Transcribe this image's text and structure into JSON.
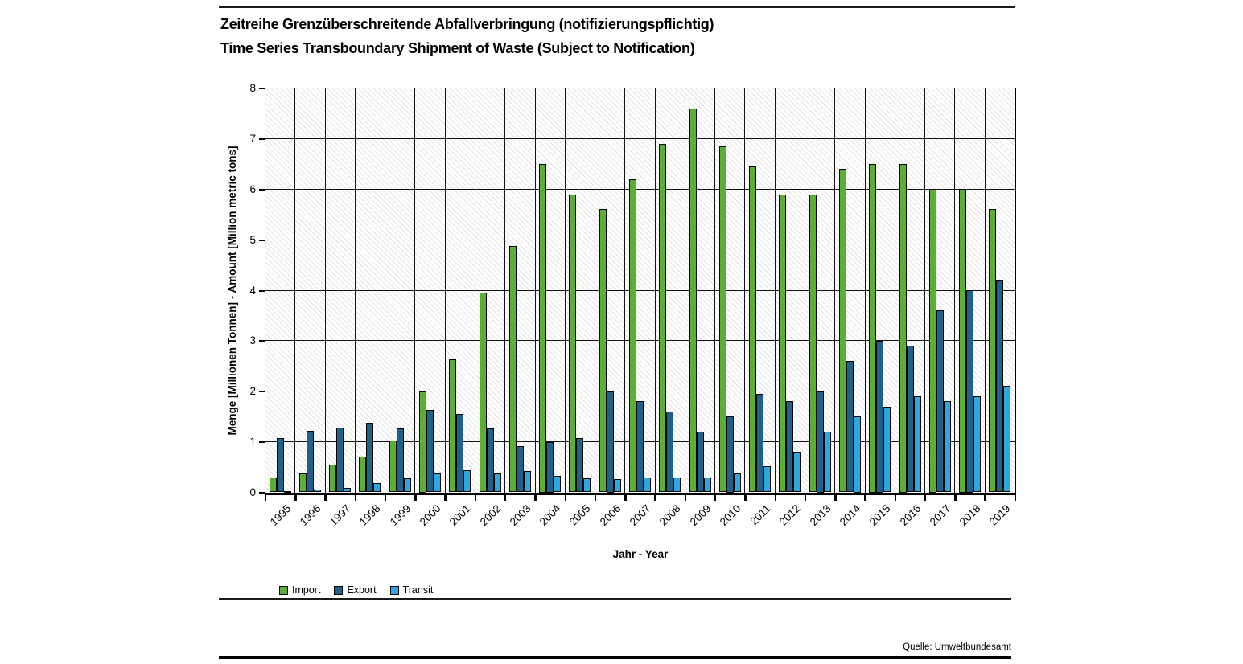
{
  "header": {
    "title_de": "Zeitreihe Grenzüberschreitende Abfallverbringung (notifizierungspflichtig)",
    "title_en": "Time Series Transboundary Shipment of Waste (Subject to Notification)"
  },
  "footer": {
    "source": "Quelle: Umweltbundesamt"
  },
  "chart_data": {
    "type": "bar",
    "title": "Zeitreihe Grenzüberschreitende Abfallverbringung (notifizierungspflichtig) / Time Series Transboundary Shipment of Waste (Subject to Notification)",
    "categories": [
      "1995",
      "1996",
      "1997",
      "1998",
      "1999",
      "2000",
      "2001",
      "2002",
      "2003",
      "2004",
      "2005",
      "2006",
      "2007",
      "2008",
      "2009",
      "2010",
      "2011",
      "2012",
      "2013",
      "2014",
      "2015",
      "2016",
      "2017",
      "2018",
      "2019"
    ],
    "series": [
      {
        "name": "Import",
        "color": "#5BB033",
        "values": [
          0.3,
          0.37,
          0.55,
          0.7,
          1.03,
          2.0,
          2.63,
          3.95,
          4.87,
          6.5,
          5.9,
          5.6,
          6.2,
          6.9,
          7.6,
          6.85,
          6.45,
          5.9,
          5.9,
          6.4,
          6.5,
          6.5,
          6.0,
          6.0,
          5.6
        ]
      },
      {
        "name": "Export",
        "color": "#1F6189",
        "values": [
          1.08,
          1.22,
          1.28,
          1.38,
          1.27,
          1.63,
          1.55,
          1.27,
          0.92,
          1.0,
          1.08,
          2.0,
          1.8,
          1.6,
          1.2,
          1.5,
          1.95,
          1.8,
          2.0,
          2.6,
          3.0,
          2.9,
          3.6,
          4.0,
          4.2
        ]
      },
      {
        "name": "Transit",
        "color": "#2BA8DF",
        "values": [
          0.02,
          0.06,
          0.08,
          0.18,
          0.28,
          0.38,
          0.43,
          0.38,
          0.42,
          0.32,
          0.28,
          0.26,
          0.29,
          0.29,
          0.29,
          0.38,
          0.52,
          0.8,
          1.2,
          1.5,
          1.7,
          1.9,
          1.8,
          1.9,
          2.1
        ]
      }
    ],
    "xlabel": "Jahr - Year",
    "ylabel": "Menge [Millionen Tonnen] - Amount [Million metric tons]",
    "ylim": [
      0,
      8
    ],
    "yticks": [
      "0",
      "1",
      "2",
      "3",
      "4",
      "5",
      "6",
      "7",
      "8"
    ],
    "grid": true,
    "legend_position": "bottom-left",
    "plot_background": "diagonal-hatch"
  }
}
